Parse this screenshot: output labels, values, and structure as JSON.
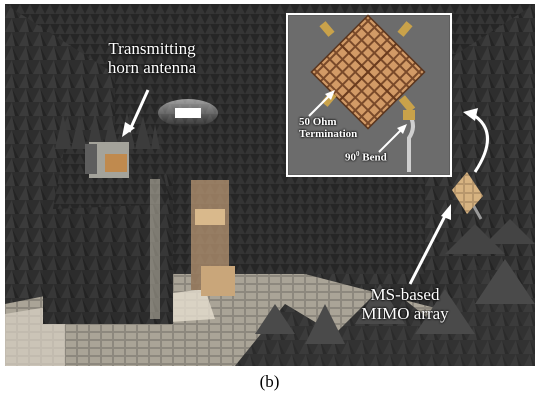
{
  "figure": {
    "caption": "(b)"
  },
  "labels": {
    "transmitting_horn": "Transmitting horn antenna",
    "transmitting_horn_line1": "Transmitting",
    "transmitting_horn_line2": "horn antenna",
    "ms_array_line1": "MS-based",
    "ms_array_line2": "MIMO array",
    "termination_line1": "50 Ohm",
    "termination_line2": "Termination",
    "bend_value": "90",
    "bend_superscript": "0",
    "bend_word": "Bend"
  },
  "colors": {
    "chamber_dark": "#2b2b2b",
    "absorber_foam": "#3a3a3a",
    "floor_light": "#b9b3a6",
    "antenna_copper": "#c58a54",
    "inset_background": "#6b6b6b",
    "inset_border": "#ffffff",
    "annotation": "#ffffff"
  },
  "icons": {
    "arrows": "white-annotation-arrow"
  }
}
